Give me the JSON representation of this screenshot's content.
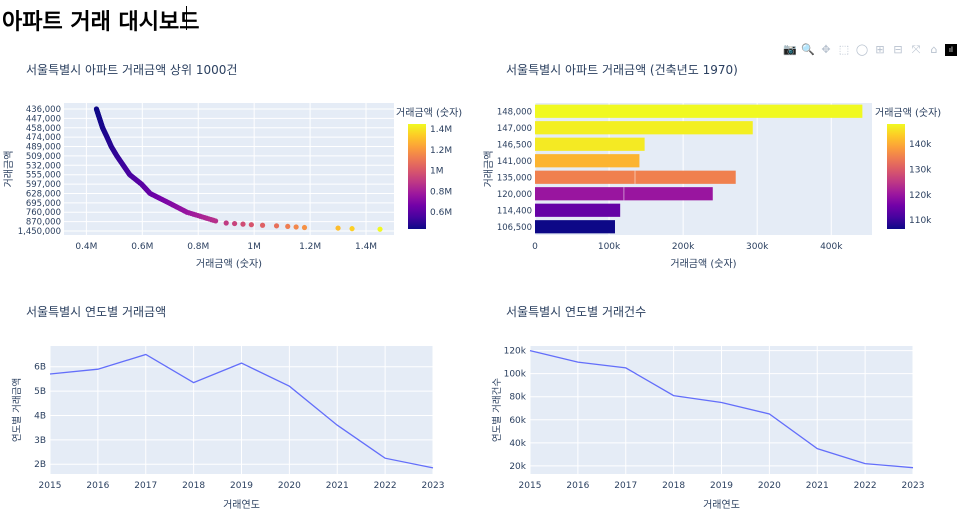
{
  "page": {
    "title": "아파트 거래 대시보드"
  },
  "modebar": {
    "icons": [
      "camera-icon",
      "zoom-icon",
      "pan-icon",
      "box-select-icon",
      "lasso-icon",
      "zoom-in-icon",
      "zoom-out-icon",
      "autoscale-icon",
      "reset-axes-icon",
      "plotly-logo-icon"
    ],
    "glyphs": [
      "📷",
      "🔍",
      "✥",
      "⬚",
      "◯",
      "⊞",
      "⊟",
      "⤧",
      "⌂",
      "ıl"
    ]
  },
  "chart_data": [
    {
      "id": "scatter-top1000",
      "type": "scatter",
      "title": "서울특별시 아파트 거래금액 상위 1000건",
      "xlabel": "거래금액 (숫자)",
      "ylabel": "거래금액",
      "xlim": [
        0.32,
        1.5
      ],
      "x_ticks": [
        0.4,
        0.6,
        0.8,
        1.0,
        1.2,
        1.4
      ],
      "x_tick_labels": [
        "0.4M",
        "0.6M",
        "0.8M",
        "1M",
        "1.2M",
        "1.4M"
      ],
      "x_unit_note": "millions",
      "y_categories": [
        "436,000",
        "447,000",
        "458,000",
        "474,000",
        "489,000",
        "509,000",
        "532,000",
        "555,000",
        "597,000",
        "628,000",
        "695,000",
        "760,000",
        "870,000",
        "1,450,000"
      ],
      "points_x": [
        0.436,
        0.447,
        0.458,
        0.474,
        0.489,
        0.509,
        0.532,
        0.555,
        0.597,
        0.628,
        0.695,
        0.76,
        0.87,
        1.45
      ],
      "extra_points_x": [
        0.9,
        0.93,
        0.96,
        0.99,
        1.03,
        1.08,
        1.12,
        1.15,
        1.18,
        1.3,
        1.35,
        1.45
      ],
      "colorbar": {
        "title": "거래금액 (숫자)",
        "tick_labels": [
          "0.6M",
          "0.8M",
          "1M",
          "1.2M",
          "1.4M"
        ],
        "tick_values": [
          0.6,
          0.8,
          1.0,
          1.2,
          1.4
        ],
        "range": [
          0.436,
          1.45
        ]
      },
      "colorscale": [
        "#0d0887",
        "#46039f",
        "#7201a8",
        "#9c179e",
        "#bd3786",
        "#d8576b",
        "#ed7953",
        "#fb9f3a",
        "#fdca26",
        "#f0f921"
      ],
      "plot_bg": "#e5ecf6"
    },
    {
      "id": "bar-1970",
      "type": "bar",
      "orientation": "horizontal",
      "title": "서울특별시 아파트 거래금액 (건축년도 1970)",
      "xlabel": "거래금액 (숫자)",
      "ylabel": "거래금액",
      "xlim": [
        0,
        455000
      ],
      "x_ticks": [
        0,
        100000,
        200000,
        300000,
        400000
      ],
      "x_tick_labels": [
        "0",
        "100k",
        "200k",
        "300k",
        "400k"
      ],
      "categories": [
        "148,000",
        "147,000",
        "146,500",
        "141,000",
        "135,000",
        "120,000",
        "114,400",
        "106,500"
      ],
      "values": [
        442000,
        294000,
        148000,
        141000,
        271000,
        240000,
        115000,
        108000
      ],
      "color_values": [
        148000,
        147000,
        146500,
        141000,
        135000,
        120000,
        114400,
        106500
      ],
      "segment_dividers": [
        [],
        [],
        [],
        [],
        [
          135000
        ],
        [
          120000
        ],
        [],
        []
      ],
      "colorbar": {
        "title": "거래금액 (숫자)",
        "tick_labels": [
          "110k",
          "120k",
          "130k",
          "140k"
        ],
        "tick_values": [
          110000,
          120000,
          130000,
          140000
        ],
        "range": [
          106500,
          148000
        ]
      },
      "colorscale": [
        "#0d0887",
        "#46039f",
        "#7201a8",
        "#9c179e",
        "#bd3786",
        "#d8576b",
        "#ed7953",
        "#fb9f3a",
        "#fdca26",
        "#f0f921"
      ],
      "plot_bg": "#e5ecf6"
    },
    {
      "id": "line-amount",
      "type": "line",
      "title": "서울특별시 연도별 거래금액",
      "xlabel": "거래연도",
      "ylabel": "연도별 거래금액",
      "x": [
        2015,
        2016,
        2017,
        2018,
        2019,
        2020,
        2021,
        2022,
        2023
      ],
      "y": [
        5.7,
        5.9,
        6.5,
        5.35,
        6.15,
        5.2,
        3.6,
        2.25,
        1.85
      ],
      "y_unit_note": "billions",
      "xlim": [
        2015,
        2023
      ],
      "ylim": [
        1.6,
        6.85
      ],
      "y_ticks": [
        2,
        3,
        4,
        5,
        6
      ],
      "y_tick_labels": [
        "2B",
        "3B",
        "4B",
        "5B",
        "6B"
      ],
      "line_color": "#636efa",
      "plot_bg": "#e5ecf6"
    },
    {
      "id": "line-count",
      "type": "line",
      "title": "서울특별시 연도별 거래건수",
      "xlabel": "거래연도",
      "ylabel": "연도별 거래건수",
      "x": [
        2015,
        2016,
        2017,
        2018,
        2019,
        2020,
        2021,
        2022,
        2023
      ],
      "y": [
        120000,
        110000,
        105000,
        81000,
        75000,
        65000,
        35000,
        22000,
        18500
      ],
      "xlim": [
        2015,
        2023
      ],
      "ylim": [
        13000,
        124000
      ],
      "y_ticks": [
        20000,
        40000,
        60000,
        80000,
        100000,
        120000
      ],
      "y_tick_labels": [
        "20k",
        "40k",
        "60k",
        "80k",
        "100k",
        "120k"
      ],
      "line_color": "#636efa",
      "plot_bg": "#e5ecf6"
    }
  ]
}
